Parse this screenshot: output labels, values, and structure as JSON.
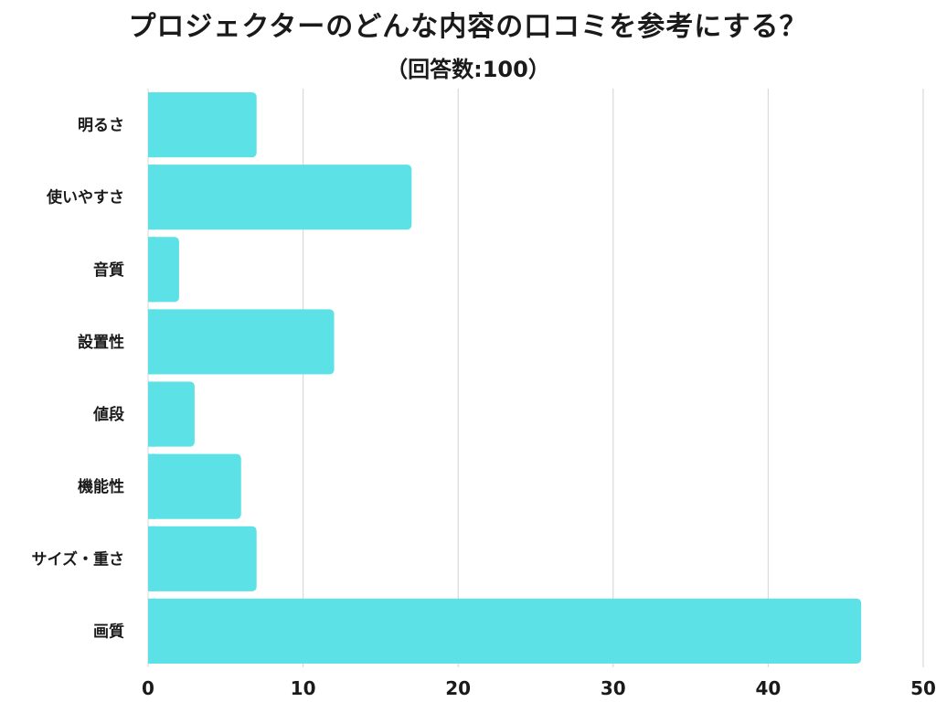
{
  "chart_data": {
    "type": "bar",
    "orientation": "horizontal",
    "title": "プロジェクターのどんな内容の口コミを参考にする？",
    "subtitle": "（回答数:100）",
    "categories": [
      "明るさ",
      "使いやすさ",
      "音質",
      "設置性",
      "値段",
      "機能性",
      "サイズ・重さ",
      "画質"
    ],
    "values": [
      7,
      17,
      2,
      12,
      3,
      6,
      7,
      46
    ],
    "xlim": [
      0,
      50
    ],
    "xticks": [
      0,
      10,
      20,
      30,
      40,
      50
    ],
    "grid": true,
    "bar_color": "#5ce1e6",
    "grid_color": "#d9d9d9"
  }
}
